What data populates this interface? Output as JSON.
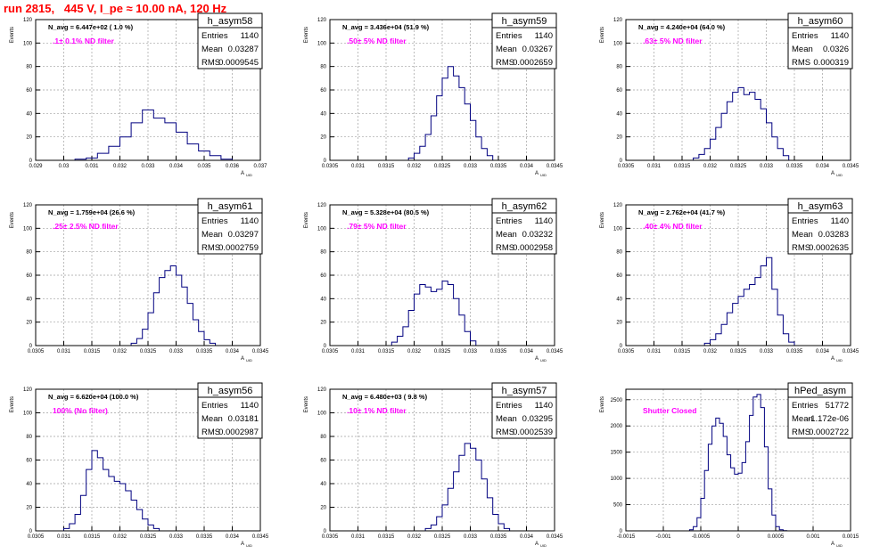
{
  "title": "run 2815,   445 V, I_pe ≈ 10.00 nA, 120 Hz",
  "chart_data": [
    {
      "type": "histogram",
      "name": "h_asym58",
      "navg": "N_avg = 6.447e+02 ( 1.0 %)",
      "filter": ".1± 0.1% ND filter",
      "stats": {
        "entries": "1140",
        "mean": "0.03287",
        "rms": "0.0009545"
      },
      "xlim": [
        0.029,
        0.037
      ],
      "xticks": [
        "0.029",
        "0.03",
        "0.031",
        "0.032",
        "0.033",
        "0.034",
        "0.035",
        "0.036",
        "0.037"
      ],
      "ylim": [
        0,
        120
      ],
      "yticks": [
        "0",
        "20",
        "40",
        "60",
        "80",
        "100",
        "120"
      ],
      "xlabel": "A",
      "xlabel_sub": "UID",
      "ylabel": "Events",
      "bins": [
        [
          0.0304,
          0.0308,
          0.0312,
          0.0316,
          0.032,
          0.0324,
          0.0328,
          0.0332,
          0.0336,
          0.034,
          0.0344,
          0.0348,
          0.0352,
          0.0356
        ],
        [
          1,
          2,
          6,
          12,
          20,
          32,
          43,
          36,
          32,
          24,
          14,
          8,
          4,
          1
        ]
      ]
    },
    {
      "type": "histogram",
      "name": "h_asym59",
      "navg": "N_avg = 3.436e+04 (51.9 %)",
      "filter": ".50± 5% ND filter",
      "stats": {
        "entries": "1140",
        "mean": "0.03267",
        "rms": "0.0002659"
      },
      "xlim": [
        0.0305,
        0.0345
      ],
      "xticks": [
        "0.0305",
        "0.031",
        "0.0315",
        "0.032",
        "0.0325",
        "0.033",
        "0.0335",
        "0.034",
        "0.0345"
      ],
      "ylim": [
        0,
        120
      ],
      "yticks": [
        "0",
        "20",
        "40",
        "60",
        "80",
        "100",
        "120"
      ],
      "xlabel": "A",
      "xlabel_sub": "UID",
      "ylabel": "Events",
      "bins": [
        [
          0.0319,
          0.032,
          0.0321,
          0.0322,
          0.0323,
          0.0324,
          0.0325,
          0.0326,
          0.0327,
          0.0328,
          0.0329,
          0.033,
          0.0331,
          0.0332,
          0.0333
        ],
        [
          2,
          6,
          12,
          22,
          38,
          55,
          70,
          80,
          72,
          62,
          48,
          34,
          20,
          10,
          4
        ]
      ]
    },
    {
      "type": "histogram",
      "name": "h_asym60",
      "navg": "N_avg = 4.240e+04 (64.0 %)",
      "filter": ".63± 5% ND filter",
      "stats": {
        "entries": "1140",
        "mean": "0.0326",
        "rms": "0.000319"
      },
      "xlim": [
        0.0305,
        0.0345
      ],
      "xticks": [
        "0.0305",
        "0.031",
        "0.0315",
        "0.032",
        "0.0325",
        "0.033",
        "0.0335",
        "0.034",
        "0.0345"
      ],
      "ylim": [
        0,
        120
      ],
      "yticks": [
        "0",
        "20",
        "40",
        "60",
        "80",
        "100",
        "120"
      ],
      "xlabel": "A",
      "xlabel_sub": "UID",
      "ylabel": "Events",
      "bins": [
        [
          0.0317,
          0.0318,
          0.0319,
          0.032,
          0.0321,
          0.0322,
          0.0323,
          0.0324,
          0.0325,
          0.0326,
          0.0327,
          0.0328,
          0.0329,
          0.033,
          0.0331,
          0.0332,
          0.0333
        ],
        [
          2,
          5,
          10,
          18,
          28,
          40,
          50,
          58,
          62,
          56,
          58,
          52,
          44,
          32,
          20,
          10,
          4
        ]
      ]
    },
    {
      "type": "histogram",
      "name": "h_asym61",
      "navg": "N_avg = 1.759e+04 (26.6 %)",
      "filter": ".25± 2.5% ND filter",
      "stats": {
        "entries": "1140",
        "mean": "0.03297",
        "rms": "0.0002759"
      },
      "xlim": [
        0.0305,
        0.0345
      ],
      "xticks": [
        "0.0305",
        "0.031",
        "0.0315",
        "0.032",
        "0.0325",
        "0.033",
        "0.0335",
        "0.034",
        "0.0345"
      ],
      "ylim": [
        0,
        120
      ],
      "yticks": [
        "0",
        "20",
        "40",
        "60",
        "80",
        "100",
        "120"
      ],
      "xlabel": "A",
      "xlabel_sub": "UID",
      "ylabel": "Events",
      "bins": [
        [
          0.0322,
          0.0323,
          0.0324,
          0.0325,
          0.0326,
          0.0327,
          0.0328,
          0.0329,
          0.033,
          0.0331,
          0.0332,
          0.0333,
          0.0334,
          0.0335,
          0.0336
        ],
        [
          2,
          6,
          14,
          28,
          45,
          58,
          64,
          68,
          60,
          50,
          36,
          22,
          12,
          5,
          2
        ]
      ]
    },
    {
      "type": "histogram",
      "name": "h_asym62",
      "navg": "N_avg = 5.328e+04 (80.5 %)",
      "filter": ".79± 5% ND filter",
      "stats": {
        "entries": "1140",
        "mean": "0.03232",
        "rms": "0.0002958"
      },
      "xlim": [
        0.0305,
        0.0345
      ],
      "xticks": [
        "0.0305",
        "0.031",
        "0.0315",
        "0.032",
        "0.0325",
        "0.033",
        "0.0335",
        "0.034",
        "0.0345"
      ],
      "ylim": [
        0,
        120
      ],
      "yticks": [
        "0",
        "20",
        "40",
        "60",
        "80",
        "100",
        "120"
      ],
      "xlabel": "A",
      "xlabel_sub": "UID",
      "ylabel": "Events",
      "bins": [
        [
          0.0316,
          0.0317,
          0.0318,
          0.0319,
          0.032,
          0.0321,
          0.0322,
          0.0323,
          0.0324,
          0.0325,
          0.0326,
          0.0327,
          0.0328,
          0.0329,
          0.033
        ],
        [
          3,
          8,
          16,
          30,
          44,
          52,
          50,
          46,
          48,
          55,
          52,
          40,
          26,
          12,
          4
        ]
      ]
    },
    {
      "type": "histogram",
      "name": "h_asym63",
      "navg": "N_avg = 2.762e+04 (41.7 %)",
      "filter": ".40± 4% ND filter",
      "stats": {
        "entries": "1140",
        "mean": "0.03283",
        "rms": "0.0002635"
      },
      "xlim": [
        0.0305,
        0.0345
      ],
      "xticks": [
        "0.0305",
        "0.031",
        "0.0315",
        "0.032",
        "0.0325",
        "0.033",
        "0.0335",
        "0.034",
        "0.0345"
      ],
      "ylim": [
        0,
        120
      ],
      "yticks": [
        "0",
        "20",
        "40",
        "60",
        "80",
        "100",
        "120"
      ],
      "xlabel": "A",
      "xlabel_sub": "UID",
      "ylabel": "Events",
      "bins": [
        [
          0.0319,
          0.032,
          0.0321,
          0.0322,
          0.0323,
          0.0324,
          0.0325,
          0.0326,
          0.0327,
          0.0328,
          0.0329,
          0.033,
          0.0331,
          0.0332,
          0.0333,
          0.0334
        ],
        [
          2,
          5,
          10,
          18,
          28,
          36,
          42,
          48,
          52,
          58,
          68,
          75,
          48,
          26,
          10,
          3
        ]
      ]
    },
    {
      "type": "histogram",
      "name": "h_asym56",
      "navg": "N_avg = 6.620e+04 (100.0 %)",
      "filter": "100% (No filter)",
      "stats": {
        "entries": "1140",
        "mean": "0.03181",
        "rms": "0.0002987"
      },
      "xlim": [
        0.0305,
        0.0345
      ],
      "xticks": [
        "0.0305",
        "0.031",
        "0.0315",
        "0.032",
        "0.0325",
        "0.033",
        "0.0335",
        "0.034",
        "0.0345"
      ],
      "ylim": [
        0,
        120
      ],
      "yticks": [
        "0",
        "20",
        "40",
        "60",
        "80",
        "100",
        "120"
      ],
      "xlabel": "A",
      "xlabel_sub": "UID",
      "ylabel": "Events",
      "bins": [
        [
          0.031,
          0.0311,
          0.0312,
          0.0313,
          0.0314,
          0.0315,
          0.0316,
          0.0317,
          0.0318,
          0.0319,
          0.032,
          0.0321,
          0.0322,
          0.0323,
          0.0324,
          0.0325,
          0.0326
        ],
        [
          2,
          6,
          14,
          30,
          52,
          68,
          62,
          52,
          46,
          42,
          40,
          34,
          26,
          18,
          10,
          5,
          2
        ]
      ]
    },
    {
      "type": "histogram",
      "name": "h_asym57",
      "navg": "N_avg = 6.480e+03 ( 9.8 %)",
      "filter": ".10± 1% ND filter",
      "stats": {
        "entries": "1140",
        "mean": "0.03295",
        "rms": "0.0002539"
      },
      "xlim": [
        0.0305,
        0.0345
      ],
      "xticks": [
        "0.0305",
        "0.031",
        "0.0315",
        "0.032",
        "0.0325",
        "0.033",
        "0.0335",
        "0.034",
        "0.0345"
      ],
      "ylim": [
        0,
        120
      ],
      "yticks": [
        "0",
        "20",
        "40",
        "60",
        "80",
        "100",
        "120"
      ],
      "xlabel": "A",
      "xlabel_sub": "UID",
      "ylabel": "Events",
      "bins": [
        [
          0.0322,
          0.0323,
          0.0324,
          0.0325,
          0.0326,
          0.0327,
          0.0328,
          0.0329,
          0.033,
          0.0331,
          0.0332,
          0.0333,
          0.0334,
          0.0335,
          0.0336
        ],
        [
          2,
          5,
          12,
          22,
          36,
          50,
          64,
          74,
          70,
          60,
          44,
          28,
          14,
          6,
          2
        ]
      ]
    },
    {
      "type": "histogram",
      "name": "hPed_asym",
      "navg": "",
      "filter": "Shutter Closed",
      "stats": {
        "entries": "51772",
        "mean": "-1.172e-06",
        "rms": "0.0002722"
      },
      "xlim": [
        -0.0015,
        0.0015
      ],
      "xticks": [
        "-0.0015",
        "-0.001",
        "-0.0005",
        "0",
        "0.0005",
        "0.001",
        "0.0015"
      ],
      "ylim": [
        0,
        2700
      ],
      "yticks": [
        "0",
        "500",
        "1000",
        "1500",
        "2000",
        "2500"
      ],
      "xlabel": "A",
      "xlabel_sub": "UID",
      "ylabel": "Events",
      "bins": [
        [
          -0.00065,
          -0.0006,
          -0.00055,
          -0.0005,
          -0.00045,
          -0.0004,
          -0.00035,
          -0.0003,
          -0.00025,
          -0.0002,
          -0.00015,
          -0.0001,
          -5e-05,
          0,
          5e-05,
          0.0001,
          0.00015,
          0.0002,
          0.00025,
          0.0003,
          0.00035,
          0.0004,
          0.00045,
          0.0005,
          0.00055,
          0.0006
        ],
        [
          20,
          80,
          250,
          620,
          1150,
          1650,
          2000,
          2150,
          2050,
          1800,
          1450,
          1200,
          1080,
          1100,
          1300,
          1700,
          2200,
          2550,
          2600,
          2350,
          1600,
          800,
          300,
          80,
          20,
          5
        ]
      ]
    }
  ]
}
